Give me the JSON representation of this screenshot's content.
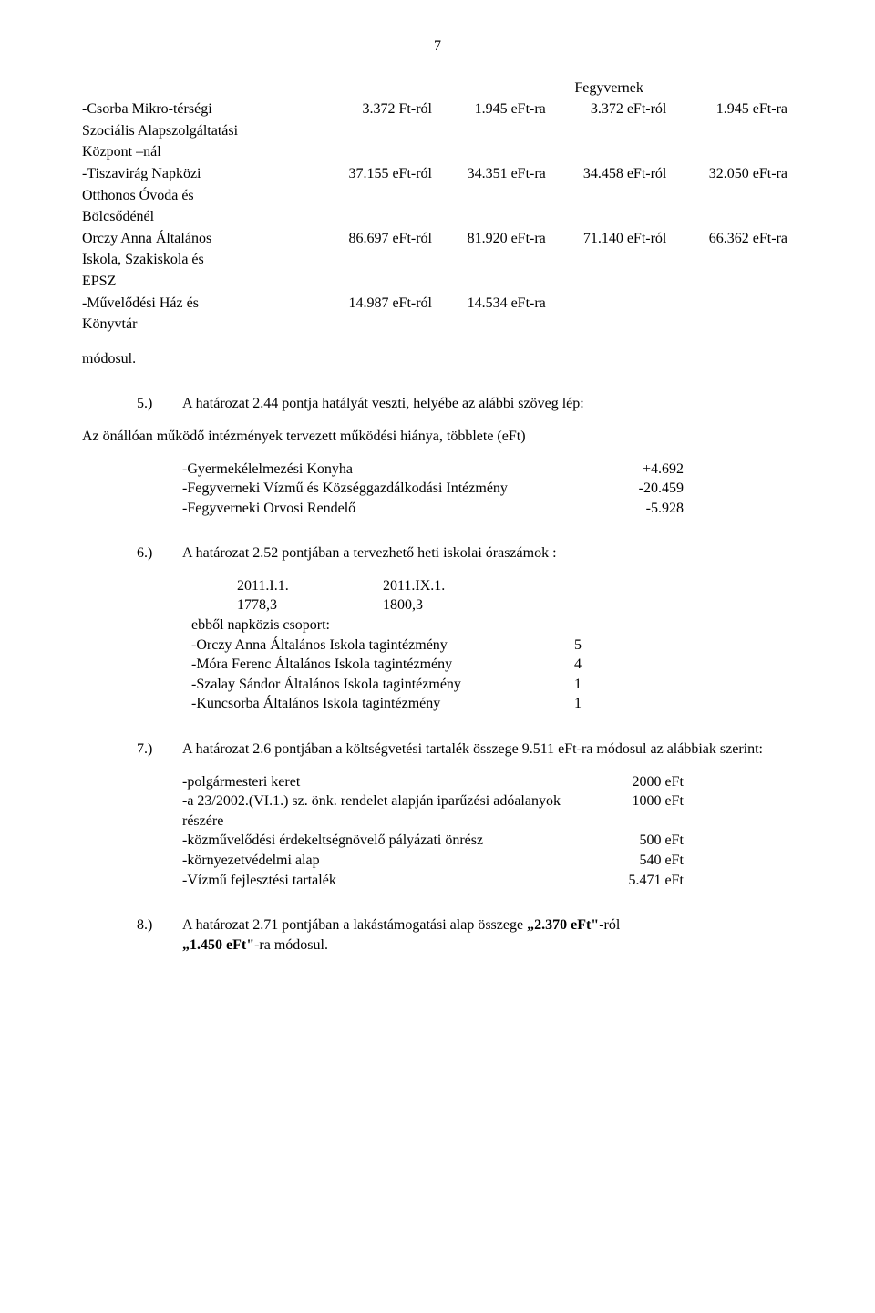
{
  "page_number": "7",
  "upper_table": {
    "header_right": "Fegyvernek",
    "rows": [
      {
        "label_lines": [
          "-Csorba Mikro-térségi",
          "Szociális Alapszolgáltatási",
          "Központ –nál"
        ],
        "c1": "3.372 Ft-ról",
        "c2": "1.945 eFt-ra",
        "c3": "3.372 eFt-ról",
        "c4": "1.945 eFt-ra"
      },
      {
        "label_lines": [
          "-Tiszavirág Napközi",
          "Otthonos Óvoda és",
          "Bölcsődénél"
        ],
        "c1": "37.155 eFt-ról",
        "c2": "34.351 eFt-ra",
        "c3": "34.458 eFt-ról",
        "c4": "32.050 eFt-ra"
      },
      {
        "label_lines": [
          "Orczy Anna Általános",
          "Iskola, Szakiskola és",
          "EPSZ"
        ],
        "c1": "86.697 eFt-ról",
        "c2": "81.920 eFt-ra",
        "c3": "71.140 eFt-ról",
        "c4": "66.362 eFt-ra"
      },
      {
        "label_lines": [
          "-Művelődési Ház és",
          "Könyvtár"
        ],
        "c1": "14.987 eFt-ról",
        "c2": "14.534 eFt-ra",
        "c3": "",
        "c4": ""
      }
    ]
  },
  "modosul": "módosul.",
  "p5": {
    "marker": "5.)",
    "lead": "A határozat 2.44 pontja hatályát veszti, helyébe az alábbi szöveg lép:",
    "intro": "Az önállóan működő intézmények tervezett működési hiánya, többlete (eFt)",
    "items": [
      {
        "label": "-Gyermekélelmezési Konyha",
        "value": "+4.692"
      },
      {
        "label": "-Fegyverneki Vízmű és Községgazdálkodási Intézmény",
        "value": "-20.459"
      },
      {
        "label": "-Fegyverneki Orvosi Rendelő",
        "value": "-5.928"
      }
    ]
  },
  "p6": {
    "marker": "6.)",
    "lead": "A határozat 2.52 pontjában a tervezhető heti iskolai óraszámok :",
    "col_headers": [
      "2011.I.1.",
      "2011.IX.1."
    ],
    "col_values": [
      "1778,3",
      "1800,3"
    ],
    "subhead": "ebből napközis csoport:",
    "items": [
      {
        "label": "-Orczy Anna Általános Iskola tagintézmény",
        "value": "5"
      },
      {
        "label": "-Móra Ferenc Általános Iskola tagintézmény",
        "value": "4"
      },
      {
        "label": "-Szalay Sándor Általános Iskola tagintézmény",
        "value": "1"
      },
      {
        "label": "-Kuncsorba Általános Iskola tagintézmény",
        "value": "1"
      }
    ]
  },
  "p7": {
    "marker": "7.)",
    "lead": "A határozat 2.6 pontjában a költségvetési tartalék összege 9.511 eFt-ra módosul az alábbiak szerint:",
    "items": [
      {
        "label": "-polgármesteri keret",
        "value": "2000 eFt"
      },
      {
        "label": "-a 23/2002.(VI.1.) sz. önk. rendelet alapján iparűzési adóalanyok részére",
        "value": "1000 eFt"
      },
      {
        "label": "-közművelődési érdekeltségnövelő pályázati önrész",
        "value": "500 eFt"
      },
      {
        "label": "-környezetvédelmi alap",
        "value": "540 eFt"
      },
      {
        "label": "-Vízmű fejlesztési tartalék",
        "value": "5.471 eFt"
      }
    ]
  },
  "p8": {
    "marker": "8.)",
    "text_before": "A határozat 2.71 pontjában a lakástámogatási alap összege ",
    "bold1": "„2.370 eFt\"",
    "mid": "-ról ",
    "bold2": "„1.450 eFt\"",
    "after": "-ra módosul."
  }
}
